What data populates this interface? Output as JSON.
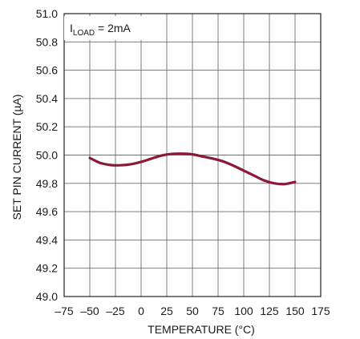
{
  "chart_data": {
    "type": "line",
    "title": "",
    "xlabel": "TEMPERATURE (°C)",
    "ylabel": "SET PIN CURRENT (µA)",
    "xlim": [
      -75,
      175
    ],
    "ylim": [
      49.0,
      51.0
    ],
    "x_ticks": [
      -75,
      -50,
      -25,
      0,
      25,
      50,
      75,
      100,
      125,
      150,
      175
    ],
    "x_tick_labels": [
      "–75",
      "–50",
      "–25",
      "0",
      "25",
      "50",
      "75",
      "100",
      "125",
      "150",
      "175"
    ],
    "y_ticks": [
      49.0,
      49.2,
      49.4,
      49.6,
      49.8,
      50.0,
      50.2,
      50.4,
      50.6,
      50.8,
      51.0
    ],
    "y_tick_labels": [
      "49.0",
      "49.2",
      "49.4",
      "49.6",
      "49.8",
      "50.0",
      "50.2",
      "50.4",
      "50.6",
      "50.8",
      "51.0"
    ],
    "grid": true,
    "annotation": {
      "main": "I",
      "sub": "LOAD",
      "rest": " = 2mA"
    },
    "line_color": "#8b1a36",
    "series": [
      {
        "x": [
          -50,
          -40,
          -30,
          -20,
          -10,
          0,
          10,
          20,
          30,
          40,
          50,
          60,
          70,
          80,
          90,
          100,
          110,
          120,
          130,
          140,
          150
        ],
        "values": [
          49.98,
          49.945,
          49.93,
          49.928,
          49.935,
          49.952,
          49.975,
          49.997,
          50.008,
          50.01,
          50.005,
          49.99,
          49.975,
          49.955,
          49.925,
          49.89,
          49.855,
          49.82,
          49.8,
          49.795,
          49.81
        ]
      }
    ]
  }
}
